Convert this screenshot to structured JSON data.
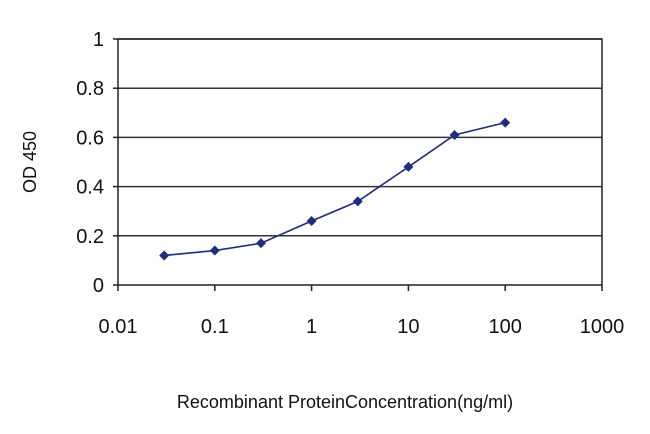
{
  "chart_data": {
    "type": "line",
    "title": "",
    "xlabel": "Recombinant ProteinConcentration(ng/ml)",
    "ylabel": "OD 450",
    "xscale": "log",
    "xlim": [
      0.01,
      1000
    ],
    "ylim": [
      0,
      1
    ],
    "xticks": [
      "0.01",
      "0.1",
      "1",
      "10",
      "100",
      "1000"
    ],
    "yticks": [
      "0",
      "0.2",
      "0.4",
      "0.6",
      "0.8",
      "1"
    ],
    "grid": "horizontal",
    "series": [
      {
        "color": "#1f2d7a",
        "marker": "diamond",
        "x": [
          0.03,
          0.1,
          0.3,
          1,
          3,
          10,
          30,
          100
        ],
        "y": [
          0.12,
          0.14,
          0.17,
          0.26,
          0.34,
          0.48,
          0.61,
          0.66
        ]
      }
    ]
  }
}
